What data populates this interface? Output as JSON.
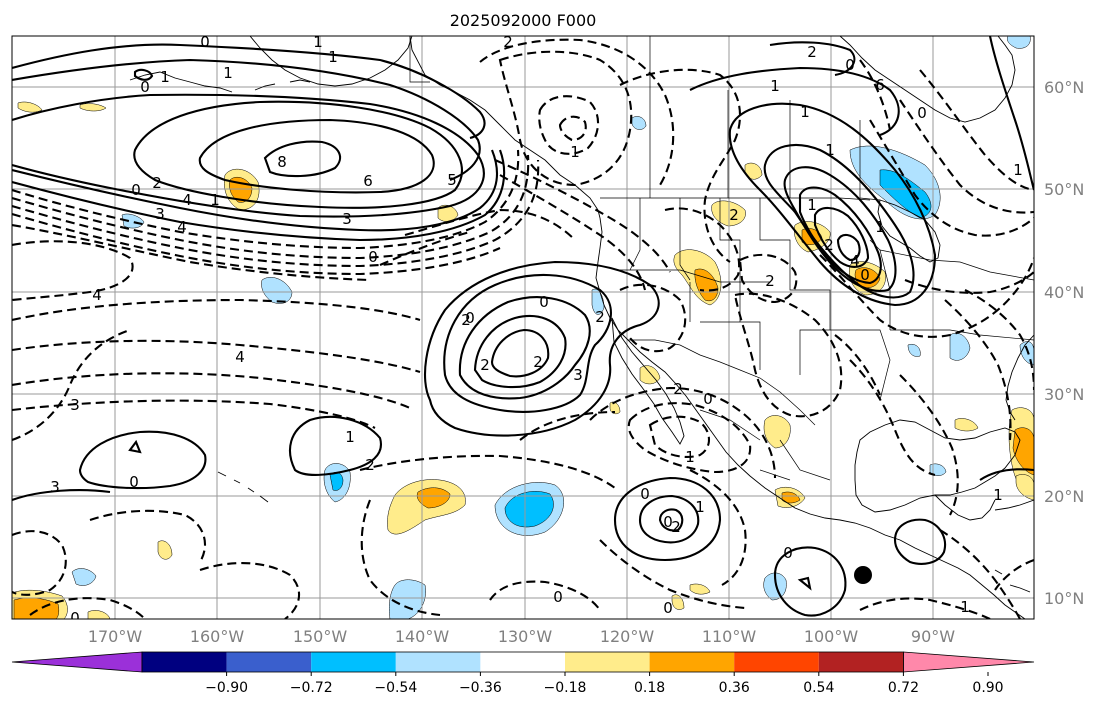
{
  "title": "2025092000 F000",
  "lon_labels": [
    "170°W",
    "160°W",
    "150°W",
    "140°W",
    "130°W",
    "120°W",
    "110°W",
    "100°W",
    "90°W"
  ],
  "lat_labels": [
    "60°N",
    "50°N",
    "40°N",
    "30°N",
    "20°N",
    "10°N"
  ],
  "colorbar": {
    "tick_labels": [
      "−0.90",
      "−0.72",
      "−0.54",
      "−0.36",
      "−0.18",
      "0.18",
      "0.36",
      "0.54",
      "0.72",
      "0.90"
    ],
    "colors": [
      "#9b30d9",
      "#000080",
      "#3a5fcd",
      "#00bfff",
      "#b0e2ff",
      "#ffffff",
      "#ffec8b",
      "#ffa500",
      "#ff4500",
      "#b22222",
      "#ff88aa"
    ]
  },
  "contour_labels": [
    "1",
    "1",
    "1",
    "0",
    "1",
    "2",
    "2",
    "1",
    "1",
    "1",
    "0",
    "6",
    "8",
    "6",
    "5",
    "3",
    "2",
    "4",
    "1",
    "0",
    "3",
    "4",
    "0",
    "4",
    "1",
    "2",
    "0",
    "2",
    "2",
    "3",
    "4",
    "3",
    "1",
    "2",
    "0",
    "3",
    "2",
    "1",
    "2",
    "4",
    "1",
    "2",
    "2",
    "2",
    "0",
    "1",
    "0",
    "0",
    "1",
    "2",
    "0",
    "0",
    "0",
    "0",
    "0",
    "0",
    "0",
    "1",
    "1",
    "1",
    "0"
  ],
  "shading_colors": {
    "light_blue": "#b0e2ff",
    "deep_sky_blue": "#00bfff",
    "light_yellow": "#ffec8b",
    "orange": "#ffa500"
  }
}
